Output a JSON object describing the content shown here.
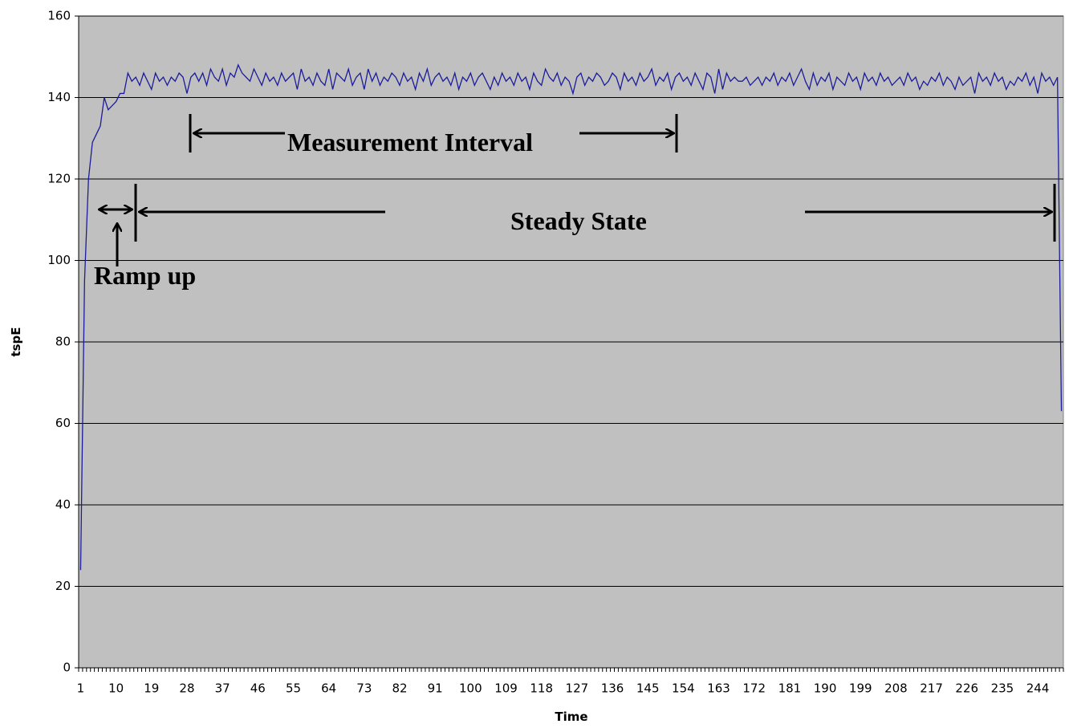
{
  "chart_data": {
    "type": "line",
    "x_label": "Time",
    "y_label": "tspE",
    "annotations": [
      "Measurement Interval",
      "Steady State",
      "Ramp up"
    ],
    "categories": [
      1,
      null,
      null,
      null,
      null,
      null,
      null,
      null,
      null,
      10,
      null,
      null,
      null,
      null,
      null,
      null,
      null,
      null,
      19,
      null,
      null,
      null,
      null,
      null,
      null,
      null,
      null,
      28,
      null,
      null,
      null,
      null,
      null,
      null,
      null,
      null,
      37,
      null,
      null,
      null,
      null,
      null,
      null,
      null,
      null,
      46,
      null,
      null,
      null,
      null,
      null,
      null,
      null,
      null,
      55,
      null,
      null,
      null,
      null,
      null,
      null,
      null,
      null,
      64,
      null,
      null,
      null,
      null,
      null,
      null,
      null,
      null,
      73,
      null,
      null,
      null,
      null,
      null,
      null,
      null,
      null,
      82,
      null,
      null,
      null,
      null,
      null,
      null,
      null,
      null,
      91,
      null,
      null,
      null,
      null,
      null,
      null,
      null,
      null,
      100,
      null,
      null,
      null,
      null,
      null,
      null,
      null,
      null,
      109,
      null,
      null,
      null,
      null,
      null,
      null,
      null,
      null,
      118,
      null,
      null,
      null,
      null,
      null,
      null,
      null,
      null,
      127,
      null,
      null,
      null,
      null,
      null,
      null,
      null,
      null,
      136,
      null,
      null,
      null,
      null,
      null,
      null,
      null,
      null,
      145,
      null,
      null,
      null,
      null,
      null,
      null,
      null,
      null,
      154,
      null,
      null,
      null,
      null,
      null,
      null,
      null,
      null,
      163,
      null,
      null,
      null,
      null,
      null,
      null,
      null,
      null,
      172,
      null,
      null,
      null,
      null,
      null,
      null,
      null,
      null,
      181,
      null,
      null,
      null,
      null,
      null,
      null,
      null,
      null,
      190,
      null,
      null,
      null,
      null,
      null,
      null,
      null,
      null,
      199,
      null,
      null,
      null,
      null,
      null,
      null,
      null,
      null,
      208,
      null,
      null,
      null,
      null,
      null,
      null,
      null,
      null,
      217,
      null,
      null,
      null,
      null,
      null,
      null,
      null,
      null,
      226,
      null,
      null,
      null,
      null,
      null,
      null,
      null,
      null,
      235,
      null,
      null,
      null,
      null,
      null,
      null,
      null,
      null,
      244,
      null,
      null,
      null,
      null,
      null,
      null
    ],
    "series": [
      {
        "name": "tspE",
        "color": "#1c1c9a",
        "values": [
          24,
          95,
          120,
          129,
          131,
          133,
          140,
          137,
          138,
          139,
          141,
          141,
          146,
          144,
          145,
          143,
          146,
          144,
          142,
          146,
          144,
          145,
          143,
          145,
          144,
          146,
          145,
          141,
          145,
          146,
          144,
          146,
          143,
          147,
          145,
          144,
          147,
          143,
          146,
          145,
          148,
          146,
          145,
          144,
          147,
          145,
          143,
          146,
          144,
          145,
          143,
          146,
          144,
          145,
          146,
          142,
          147,
          144,
          145,
          143,
          146,
          144,
          143,
          147,
          142,
          146,
          145,
          144,
          147,
          143,
          145,
          146,
          142,
          147,
          144,
          146,
          143,
          145,
          144,
          146,
          145,
          143,
          146,
          144,
          145,
          142,
          146,
          144,
          147,
          143,
          145,
          146,
          144,
          145,
          143,
          146,
          142,
          145,
          144,
          146,
          143,
          145,
          146,
          144,
          142,
          145,
          143,
          146,
          144,
          145,
          143,
          146,
          144,
          145,
          142,
          146,
          144,
          143,
          147,
          145,
          144,
          146,
          143,
          145,
          144,
          141,
          145,
          146,
          143,
          145,
          144,
          146,
          145,
          143,
          144,
          146,
          145,
          142,
          146,
          144,
          145,
          143,
          146,
          144,
          145,
          147,
          143,
          145,
          144,
          146,
          142,
          145,
          146,
          144,
          145,
          143,
          146,
          144,
          142,
          146,
          145,
          141,
          147,
          142,
          146,
          144,
          145,
          144,
          144,
          145,
          143,
          144,
          145,
          143,
          145,
          144,
          146,
          143,
          145,
          144,
          146,
          143,
          145,
          147,
          144,
          142,
          146,
          143,
          145,
          144,
          146,
          142,
          145,
          144,
          143,
          146,
          144,
          145,
          142,
          146,
          144,
          145,
          143,
          146,
          144,
          145,
          143,
          144,
          145,
          143,
          146,
          144,
          145,
          142,
          144,
          143,
          145,
          144,
          146,
          143,
          145,
          144,
          142,
          145,
          143,
          144,
          145,
          141,
          146,
          144,
          145,
          143,
          146,
          144,
          145,
          142,
          144,
          143,
          145,
          144,
          146,
          143,
          145,
          141,
          146,
          144,
          145,
          143,
          145,
          63
        ]
      }
    ],
    "ylim": [
      0,
      160
    ],
    "yticks": [
      0,
      20,
      40,
      60,
      80,
      100,
      120,
      140,
      160
    ],
    "grid": true,
    "background": "#c0c0c0"
  }
}
